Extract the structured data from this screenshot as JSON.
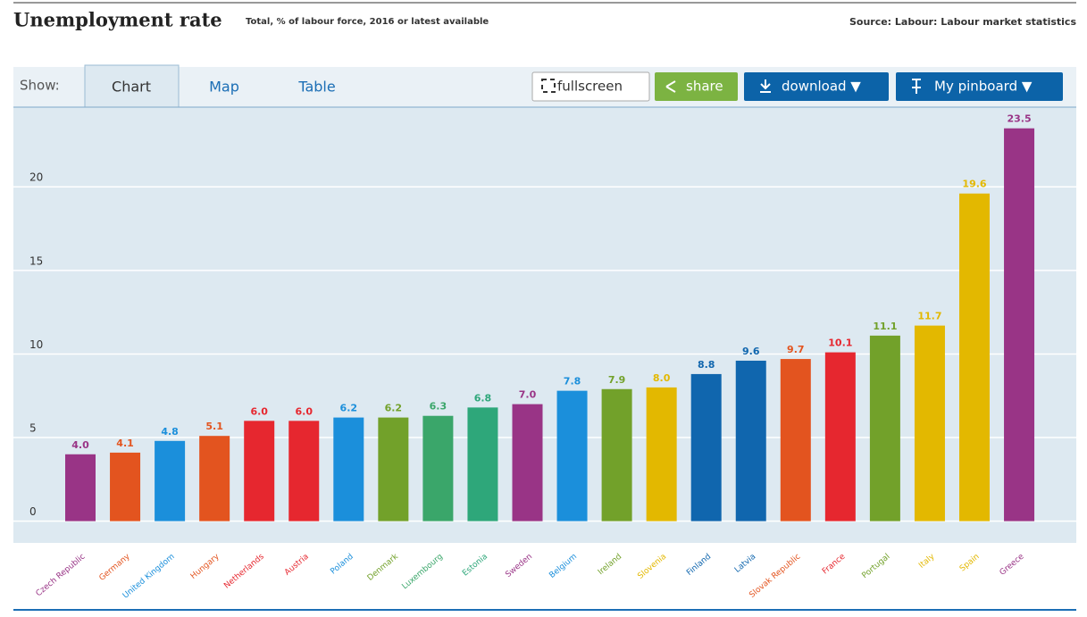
{
  "header": {
    "title": "Unemployment rate",
    "subtitle": "Total, % of labour force, 2016 or latest available",
    "source": "Source: Labour: Labour market statistics"
  },
  "tabs": {
    "show": "Show:",
    "items": [
      "Chart",
      "Map",
      "Table"
    ]
  },
  "buttons": [
    "fullscreen",
    "share",
    "download ▼",
    "My pinboard ▼"
  ],
  "chart_data": {
    "type": "bar",
    "categories": [
      "Czech Republic",
      "Germany",
      "United Kingdom",
      "Hungary",
      "Netherlands",
      "Austria",
      "Poland",
      "Denmark",
      "Luxembourg",
      "Estonia",
      "Sweden",
      "Belgium",
      "Ireland",
      "Slovenia",
      "Finland",
      "Latvia",
      "Slovak Republic",
      "France",
      "Portugal",
      "Italy",
      "Spain",
      "Greece"
    ],
    "values": [
      4.0,
      4.1,
      4.8,
      5.1,
      6.0,
      6.0,
      6.2,
      6.2,
      6.3,
      6.8,
      7.0,
      7.8,
      7.9,
      8.0,
      8.8,
      9.6,
      9.7,
      10.1,
      11.1,
      11.7,
      19.6,
      23.5
    ],
    "value_labels": [
      "4.0",
      "4.1",
      "4.8",
      "5.1",
      "6.0",
      "6.0",
      "6.2",
      "6.2",
      "6.3",
      "6.8",
      "7.0",
      "7.8",
      "7.9",
      "8.0",
      "8.8",
      "9.6",
      "9.7",
      "10.1",
      "11.1",
      "11.7",
      "19.6",
      "23.5"
    ],
    "colors": [
      "#993486",
      "#e3541f",
      "#1b8fdb",
      "#e3541f",
      "#e6272f",
      "#e6272f",
      "#1b8fdb",
      "#72a12a",
      "#3aa66a",
      "#2ea77a",
      "#993486",
      "#1b8fdb",
      "#72a12a",
      "#e3b800",
      "#1066ae",
      "#1066ae",
      "#e3541f",
      "#e6272f",
      "#72a12a",
      "#e3b800",
      "#e3b800",
      "#993486"
    ],
    "ylim": [
      -1.3,
      24.5
    ],
    "yticks": [
      0,
      5,
      10,
      15,
      20
    ],
    "grid": true
  }
}
